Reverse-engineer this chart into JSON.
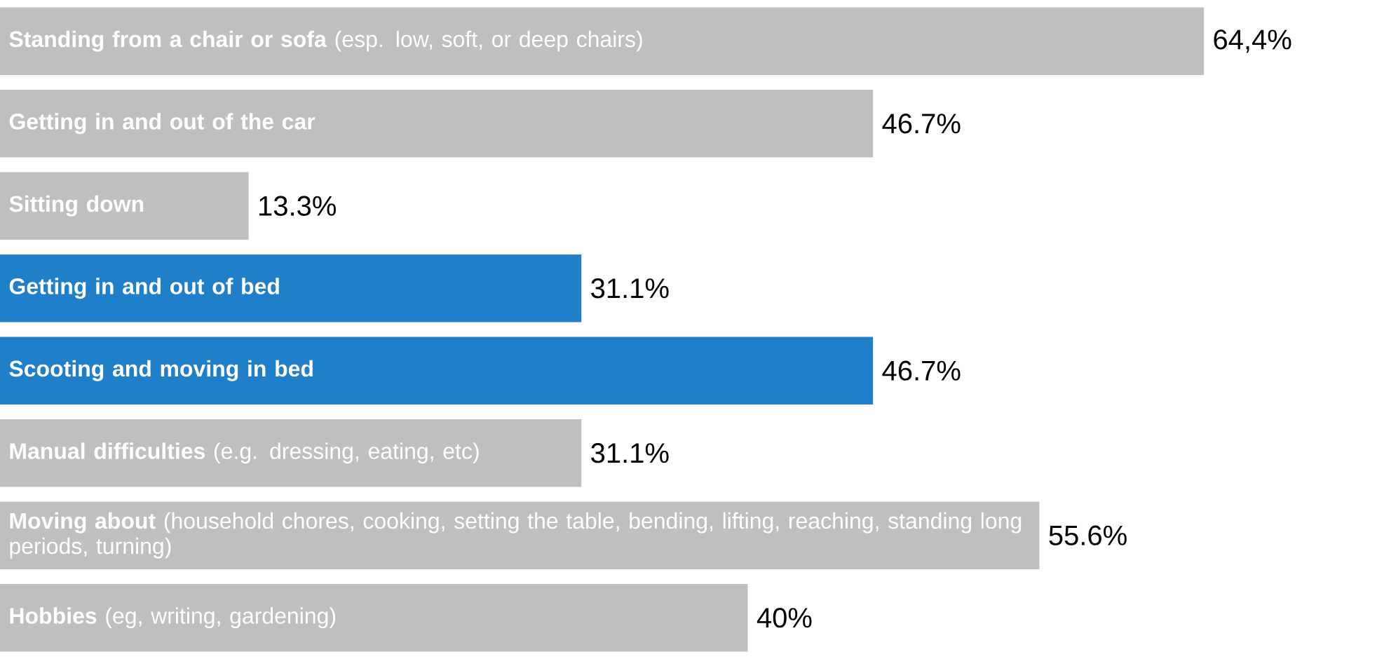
{
  "chart_data": {
    "type": "bar",
    "orientation": "horizontal",
    "categories": [
      "**Standing from a chair or sofa** (esp. low, soft, or deep chairs)",
      "**Getting in and out of the car**",
      "**Sitting down**",
      "**Getting in and out of bed**",
      "**Scooting and moving in bed**",
      "**Manual difficulties** (e.g. dressing, eating, etc)",
      "**Moving about** (household chores, cooking, setting the table, bending, lifting, reaching, standing long periods, turning)",
      "**Hobbies** (eg, writing, gardening)"
    ],
    "values": [
      64.4,
      46.7,
      13.3,
      31.1,
      46.7,
      31.1,
      55.6,
      40
    ],
    "value_labels": [
      "64,4%",
      "46.7%",
      "13.3%",
      "31.1%",
      "46.7%",
      "31.1%",
      "55.6%",
      "40%"
    ],
    "colors": [
      "#bfbfbf",
      "#bfbfbf",
      "#bfbfbf",
      "#1f7fc8",
      "#1f7fc8",
      "#bfbfbf",
      "#bfbfbf",
      "#bfbfbf"
    ]
  }
}
